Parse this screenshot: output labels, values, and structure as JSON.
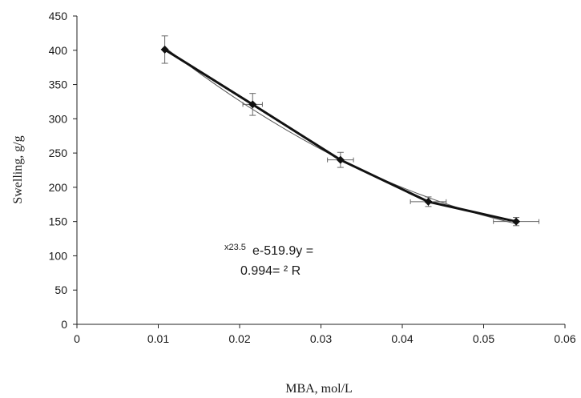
{
  "chart_data": {
    "type": "scatter",
    "title": "",
    "xlabel": "MBA,  mol/L",
    "ylabel": "Swelling, g/g",
    "xlim": [
      0,
      0.06
    ],
    "ylim": [
      0,
      450
    ],
    "xticks": [
      "0",
      "0.01",
      "0.02",
      "0.03",
      "0.04",
      "0.05",
      "0.06"
    ],
    "yticks": [
      "0",
      "50",
      "100",
      "150",
      "200",
      "250",
      "300",
      "350",
      "400",
      "450"
    ],
    "grid": false,
    "series": [
      {
        "x": [
          0.0108,
          0.0216,
          0.0324,
          0.0432,
          0.054
        ],
        "y": [
          401,
          321,
          240,
          179,
          150
        ],
        "y_error": [
          20,
          16,
          11,
          7,
          6
        ],
        "x_error": [
          0,
          0.0012,
          0.0016,
          0.0022,
          0.0028
        ],
        "style": "bold line with diamond markers and error bars"
      }
    ],
    "trendline": {
      "form": "exponential",
      "line1_sup": "x23.5",
      "line1_main": "e-519.9y =",
      "line2": "0.994= ² R"
    }
  }
}
